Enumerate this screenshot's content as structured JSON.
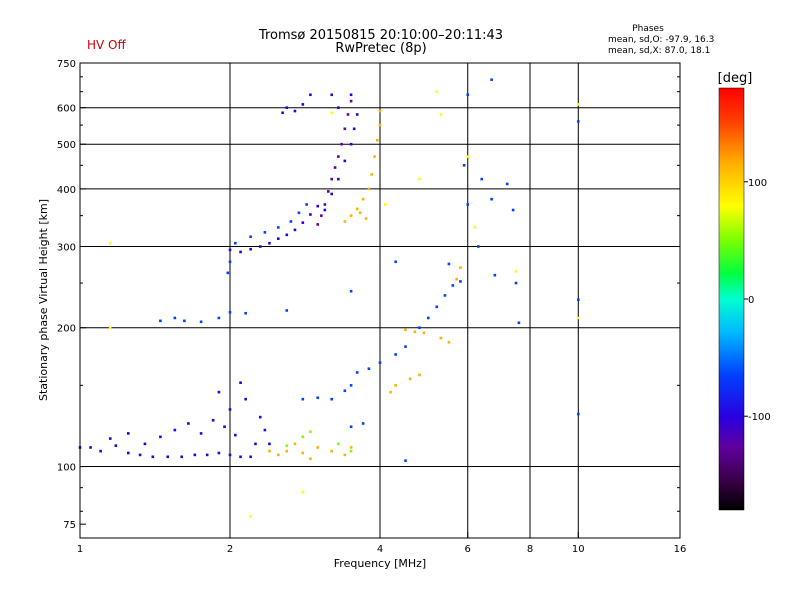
{
  "status": {
    "hv": "HV Off",
    "hv_color": "#cc0000"
  },
  "header": {
    "title": "Tromsø 20150815 20:10:00–20:11:43",
    "subtitle": "RwPretec (8p)"
  },
  "stats": {
    "heading": "Phases",
    "line_o": "mean, sd,O: -97.9, 16.3",
    "line_x": "mean, sd,X:  87.0, 18.1"
  },
  "colorbar": {
    "title": "[deg]",
    "range": [
      -180,
      180
    ],
    "ticks": [
      {
        "value": 100,
        "label": "100"
      },
      {
        "value": 0,
        "label": "0"
      },
      {
        "value": -100,
        "label": "-100"
      }
    ]
  },
  "chart_data": {
    "type": "scatter",
    "xlabel": "Frequency [MHz]",
    "ylabel": "Stationary phase Virtual Height [km]",
    "xscale": "log",
    "yscale": "log",
    "xlim": [
      1,
      16
    ],
    "ylim": [
      70,
      750
    ],
    "x_ticks": [
      {
        "value": 1,
        "label": "1"
      },
      {
        "value": 2,
        "label": "2"
      },
      {
        "value": 4,
        "label": "4"
      },
      {
        "value": 6,
        "label": "6"
      },
      {
        "value": 8,
        "label": "8"
      },
      {
        "value": 10,
        "label": "10"
      },
      {
        "value": 16,
        "label": "16"
      }
    ],
    "x_grid": [
      2,
      4,
      6,
      8,
      10
    ],
    "y_ticks": [
      {
        "value": 75,
        "label": "75"
      },
      {
        "value": 100,
        "label": "100"
      },
      {
        "value": 200,
        "label": "200"
      },
      {
        "value": 300,
        "label": "300"
      },
      {
        "value": 400,
        "label": "400"
      },
      {
        "value": 500,
        "label": "500"
      },
      {
        "value": 600,
        "label": "600"
      },
      {
        "value": 750,
        "label": "750"
      }
    ],
    "y_grid": [
      100,
      200,
      300,
      400,
      500,
      600
    ],
    "grid": true,
    "traces": [
      {
        "name": "e-layer-trace",
        "phase": -112,
        "points": [
          [
            1.0,
            110
          ],
          [
            1.05,
            110
          ],
          [
            1.1,
            108
          ],
          [
            1.18,
            111
          ],
          [
            1.25,
            107
          ],
          [
            1.32,
            106
          ],
          [
            1.4,
            105
          ],
          [
            1.5,
            105
          ],
          [
            1.6,
            105
          ],
          [
            1.7,
            106
          ],
          [
            1.8,
            106
          ],
          [
            1.9,
            107
          ],
          [
            2.0,
            106
          ],
          [
            2.1,
            105
          ],
          [
            2.2,
            105
          ]
        ]
      },
      {
        "name": "e-layer-scatter",
        "phase": -104,
        "points": [
          [
            1.15,
            115
          ],
          [
            1.25,
            118
          ],
          [
            1.35,
            112
          ],
          [
            1.45,
            116
          ],
          [
            1.55,
            120
          ],
          [
            1.65,
            124
          ],
          [
            1.75,
            118
          ],
          [
            1.85,
            126
          ],
          [
            1.95,
            122
          ],
          [
            2.0,
            133
          ],
          [
            2.05,
            117
          ],
          [
            2.15,
            140
          ],
          [
            2.25,
            112
          ],
          [
            2.3,
            128
          ],
          [
            2.1,
            152
          ],
          [
            1.9,
            145
          ],
          [
            2.35,
            120
          ],
          [
            2.4,
            112
          ]
        ]
      },
      {
        "name": "e-yellow-cluster",
        "phase": 88,
        "points": [
          [
            2.4,
            108
          ],
          [
            2.5,
            106
          ],
          [
            2.6,
            108
          ],
          [
            2.7,
            112
          ],
          [
            2.8,
            107
          ],
          [
            2.9,
            104
          ],
          [
            3.0,
            110
          ],
          [
            3.2,
            108
          ],
          [
            3.4,
            106
          ],
          [
            3.5,
            110
          ]
        ]
      },
      {
        "name": "e-green-cluster",
        "phase": 30,
        "points": [
          [
            2.6,
            111
          ],
          [
            2.8,
            116
          ],
          [
            2.9,
            119
          ],
          [
            3.3,
            112
          ],
          [
            3.5,
            108
          ]
        ]
      },
      {
        "name": "f1-trace",
        "phase": -100,
        "points": [
          [
            2.8,
            140
          ],
          [
            3.0,
            141
          ],
          [
            3.2,
            140
          ],
          [
            3.4,
            146
          ],
          [
            3.5,
            150
          ],
          [
            3.6,
            160
          ],
          [
            3.8,
            163
          ],
          [
            4.0,
            168
          ],
          [
            4.3,
            175
          ],
          [
            4.5,
            182
          ],
          [
            4.8,
            200
          ],
          [
            5.0,
            210
          ],
          [
            5.2,
            222
          ],
          [
            5.4,
            235
          ],
          [
            5.6,
            247
          ],
          [
            5.8,
            252
          ]
        ]
      },
      {
        "name": "f1-yellow",
        "phase": 92,
        "points": [
          [
            4.5,
            198
          ],
          [
            4.7,
            196
          ],
          [
            4.9,
            195
          ],
          [
            4.6,
            155
          ],
          [
            4.8,
            158
          ],
          [
            5.3,
            190
          ],
          [
            5.5,
            186
          ],
          [
            5.7,
            255
          ],
          [
            5.8,
            270
          ],
          [
            4.2,
            145
          ],
          [
            4.3,
            150
          ]
        ]
      },
      {
        "name": "f2-lower-trace",
        "phase": -112,
        "points": [
          [
            2.0,
            295
          ],
          [
            2.1,
            292
          ],
          [
            2.2,
            296
          ],
          [
            2.3,
            300
          ],
          [
            2.4,
            305
          ],
          [
            2.5,
            312
          ],
          [
            2.6,
            318
          ],
          [
            2.7,
            326
          ],
          [
            2.8,
            338
          ],
          [
            2.9,
            352
          ],
          [
            3.0,
            367
          ]
        ]
      },
      {
        "name": "f2-upper-trace",
        "phase": -96,
        "points": [
          [
            2.05,
            305
          ],
          [
            2.2,
            315
          ],
          [
            2.35,
            322
          ],
          [
            2.5,
            330
          ],
          [
            2.65,
            340
          ],
          [
            2.75,
            355
          ],
          [
            2.85,
            370
          ]
        ]
      },
      {
        "name": "f2-steep-purple",
        "phase": -135,
        "points": [
          [
            3.0,
            335
          ],
          [
            3.05,
            350
          ],
          [
            3.1,
            370
          ],
          [
            3.15,
            395
          ],
          [
            3.2,
            420
          ],
          [
            3.25,
            445
          ],
          [
            3.3,
            470
          ],
          [
            3.35,
            500
          ],
          [
            3.4,
            540
          ],
          [
            3.45,
            580
          ],
          [
            3.5,
            620
          ]
        ]
      },
      {
        "name": "f2-steep-blue",
        "phase": -105,
        "points": [
          [
            3.1,
            360
          ],
          [
            3.2,
            390
          ],
          [
            3.3,
            420
          ],
          [
            3.4,
            460
          ],
          [
            3.5,
            500
          ],
          [
            3.55,
            540
          ],
          [
            3.6,
            580
          ],
          [
            3.3,
            600
          ],
          [
            3.2,
            640
          ],
          [
            3.5,
            640
          ]
        ]
      },
      {
        "name": "f2-x-yellow",
        "phase": 90,
        "points": [
          [
            3.4,
            340
          ],
          [
            3.5,
            350
          ],
          [
            3.6,
            362
          ],
          [
            3.7,
            380
          ],
          [
            3.8,
            400
          ],
          [
            3.85,
            430
          ],
          [
            3.9,
            470
          ],
          [
            3.95,
            510
          ],
          [
            4.0,
            550
          ],
          [
            4.0,
            590
          ],
          [
            3.75,
            345
          ],
          [
            3.65,
            355
          ]
        ]
      },
      {
        "name": "f2-cusp-mixed",
        "phase": -118,
        "points": [
          [
            2.7,
            590
          ],
          [
            2.8,
            610
          ],
          [
            2.9,
            640
          ],
          [
            2.6,
            600
          ],
          [
            2.55,
            585
          ]
        ]
      },
      {
        "name": "sporadic-echoes",
        "phase": -100,
        "points": [
          [
            1.45,
            207
          ],
          [
            1.55,
            210
          ],
          [
            1.62,
            207
          ],
          [
            1.75,
            206
          ],
          [
            1.9,
            210
          ],
          [
            2.0,
            216
          ],
          [
            2.15,
            215
          ],
          [
            1.98,
            263
          ],
          [
            2.0,
            278
          ],
          [
            2.6,
            218
          ],
          [
            3.5,
            240
          ],
          [
            4.3,
            278
          ],
          [
            5.5,
            275
          ],
          [
            6.0,
            370
          ],
          [
            6.3,
            300
          ],
          [
            6.4,
            420
          ],
          [
            6.7,
            380
          ],
          [
            7.2,
            410
          ],
          [
            7.4,
            360
          ],
          [
            6.8,
            260
          ],
          [
            7.5,
            250
          ],
          [
            7.6,
            205
          ],
          [
            10.0,
            560
          ],
          [
            10.0,
            230
          ],
          [
            10.0,
            130
          ],
          [
            6.0,
            640
          ],
          [
            6.7,
            690
          ],
          [
            5.9,
            450
          ],
          [
            4.5,
            103
          ],
          [
            3.5,
            122
          ],
          [
            3.7,
            124
          ]
        ]
      },
      {
        "name": "scattered-warm",
        "phase": 75,
        "points": [
          [
            1.15,
            305
          ],
          [
            1.15,
            200
          ],
          [
            2.2,
            78
          ],
          [
            2.8,
            88
          ],
          [
            4.1,
            370
          ],
          [
            4.8,
            420
          ],
          [
            5.3,
            580
          ],
          [
            6.0,
            470
          ],
          [
            6.2,
            330
          ],
          [
            7.5,
            265
          ],
          [
            10.0,
            610
          ],
          [
            10.0,
            210
          ],
          [
            3.2,
            585
          ],
          [
            5.2,
            650
          ]
        ]
      }
    ]
  }
}
